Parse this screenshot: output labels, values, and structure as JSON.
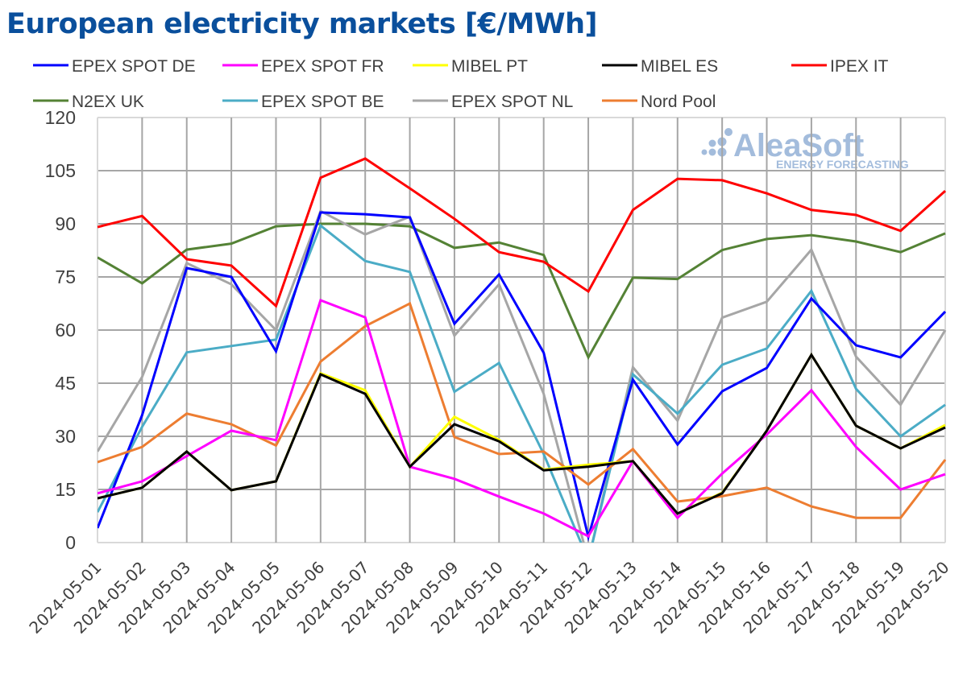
{
  "title": "European electricity markets [€/MWh]",
  "watermark": {
    "brand": "AleaSoft",
    "tagline": "ENERGY FORECASTING"
  },
  "chart_data": {
    "type": "line",
    "title": "European electricity markets [€/MWh]",
    "xlabel": "",
    "ylabel": "",
    "ylim": [
      0,
      120
    ],
    "yticks": [
      0,
      15,
      30,
      45,
      60,
      75,
      90,
      105,
      120
    ],
    "grid": true,
    "legend_position": "top",
    "categories": [
      "2024-05-01",
      "2024-05-02",
      "2024-05-03",
      "2024-05-04",
      "2024-05-05",
      "2024-05-06",
      "2024-05-07",
      "2024-05-08",
      "2024-05-09",
      "2024-05-10",
      "2024-05-11",
      "2024-05-12",
      "2024-05-13",
      "2024-05-14",
      "2024-05-15",
      "2024-05-16",
      "2024-05-17",
      "2024-05-18",
      "2024-05-19",
      "2024-05-20"
    ],
    "series": [
      {
        "name": "N2EX UK",
        "color": "#548235",
        "values": [
          80.5,
          73.2,
          82.7,
          84.4,
          89.3,
          90.0,
          90.0,
          89.3,
          83.2,
          84.7,
          81.2,
          52.3,
          74.8,
          74.4,
          82.6,
          85.7,
          86.8,
          85.0,
          82.0,
          87.3
        ]
      },
      {
        "name": "IPEX IT",
        "color": "#ff0000",
        "values": [
          89.1,
          92.2,
          80.0,
          78.2,
          66.8,
          103.0,
          108.4,
          100.0,
          91.4,
          82.0,
          79.3,
          70.9,
          93.9,
          102.7,
          102.3,
          98.6,
          93.9,
          92.5,
          88.0,
          99.3
        ]
      },
      {
        "name": "EPEX SPOT NL",
        "color": "#a6a6a6",
        "values": [
          25.7,
          46.8,
          78.9,
          72.9,
          60.0,
          93.6,
          87.0,
          92.0,
          58.4,
          72.9,
          42.0,
          -5.0,
          49.5,
          34.4,
          63.5,
          68.0,
          82.7,
          52.5,
          38.9,
          60.0
        ]
      },
      {
        "name": "EPEX SPOT BE",
        "color": "#4bacc6",
        "values": [
          8.6,
          32.7,
          53.7,
          55.5,
          57.3,
          89.5,
          79.5,
          76.4,
          42.6,
          50.7,
          25.0,
          -5.0,
          47.5,
          36.4,
          50.2,
          54.8,
          71.1,
          43.4,
          30.0,
          38.9
        ]
      },
      {
        "name": "EPEX SPOT DE",
        "color": "#0000ff",
        "values": [
          4.1,
          36.0,
          77.5,
          75.0,
          54.0,
          93.2,
          92.7,
          91.8,
          61.8,
          75.7,
          53.6,
          1.6,
          46.0,
          27.7,
          42.7,
          49.3,
          68.9,
          55.7,
          52.3,
          65.2
        ]
      },
      {
        "name": "Nord Pool",
        "color": "#ed7d31",
        "values": [
          22.7,
          27.0,
          36.4,
          33.4,
          27.4,
          51.1,
          61.1,
          67.5,
          29.8,
          25.0,
          25.7,
          16.4,
          26.4,
          11.6,
          13.1,
          15.5,
          10.2,
          7.0,
          7.0,
          23.4
        ]
      },
      {
        "name": "EPEX SPOT FR",
        "color": "#ff00ff",
        "values": [
          13.9,
          17.3,
          24.4,
          31.6,
          28.9,
          68.4,
          63.6,
          21.4,
          18.0,
          13.0,
          8.2,
          1.8,
          23.0,
          7.0,
          19.5,
          30.5,
          43.0,
          27.0,
          15.0,
          19.3
        ]
      },
      {
        "name": "MIBEL PT",
        "color": "#ffff00",
        "values": [
          12.5,
          15.5,
          25.7,
          14.8,
          17.3,
          47.8,
          43.0,
          21.4,
          35.5,
          29.0,
          20.6,
          22.0,
          23.0,
          8.2,
          14.1,
          31.6,
          53.0,
          33.0,
          26.6,
          33.2
        ]
      },
      {
        "name": "MIBEL ES",
        "color": "#000000",
        "values": [
          12.5,
          15.5,
          25.7,
          14.8,
          17.3,
          47.5,
          42.0,
          21.4,
          33.4,
          28.6,
          20.4,
          21.4,
          23.0,
          8.2,
          13.9,
          31.6,
          53.0,
          33.0,
          26.6,
          32.5
        ]
      }
    ],
    "legend": [
      {
        "name": "EPEX SPOT DE",
        "color": "#0000ff"
      },
      {
        "name": "EPEX SPOT FR",
        "color": "#ff00ff"
      },
      {
        "name": "MIBEL PT",
        "color": "#ffff00"
      },
      {
        "name": "MIBEL ES",
        "color": "#000000"
      },
      {
        "name": "IPEX IT",
        "color": "#ff0000"
      },
      {
        "name": "N2EX UK",
        "color": "#548235"
      },
      {
        "name": "EPEX SPOT BE",
        "color": "#4bacc6"
      },
      {
        "name": "EPEX SPOT NL",
        "color": "#a6a6a6"
      },
      {
        "name": "Nord Pool",
        "color": "#ed7d31"
      }
    ]
  }
}
